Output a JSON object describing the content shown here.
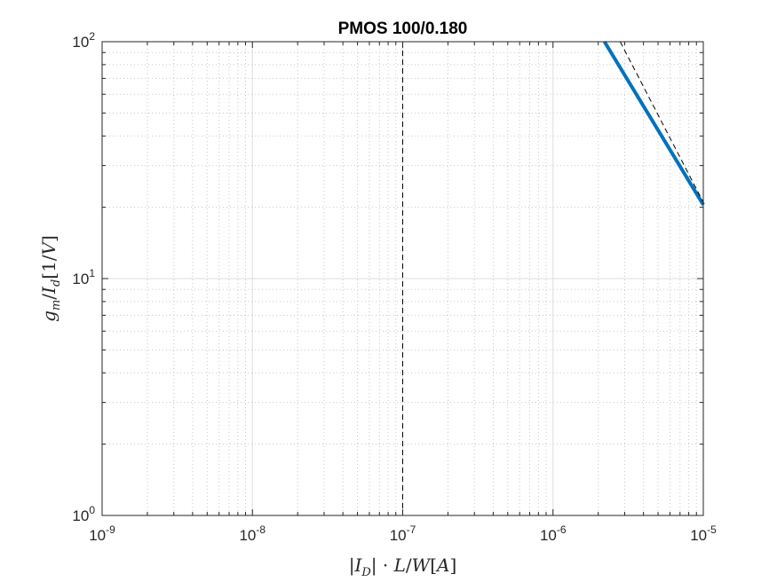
{
  "chart_data": {
    "type": "line",
    "title": "PMOS 100/0.180",
    "xlabel": "|I_D|·L/W [A]",
    "ylabel": "g_m/I_d [1/V]",
    "xscale": "log",
    "yscale": "log",
    "xlim": [
      1e-09,
      1e-05
    ],
    "ylim": [
      1,
      100
    ],
    "grid": true,
    "minor_grid": true,
    "x_ticks": [
      {
        "base": "10",
        "exp": "-9",
        "value": 1e-09
      },
      {
        "base": "10",
        "exp": "-8",
        "value": 1e-08
      },
      {
        "base": "10",
        "exp": "-7",
        "value": 1e-07
      },
      {
        "base": "10",
        "exp": "-6",
        "value": 1e-06
      },
      {
        "base": "10",
        "exp": "-5",
        "value": 1e-05
      }
    ],
    "y_ticks": [
      {
        "base": "10",
        "exp": "0",
        "value": 1
      },
      {
        "base": "10",
        "exp": "1",
        "value": 10
      },
      {
        "base": "10",
        "exp": "2",
        "value": 100
      }
    ],
    "series": [
      {
        "style": "solid",
        "color": "#0072BD",
        "x": [
          2.2e-06,
          1e-05
        ],
        "y": [
          100,
          20.5
        ]
      },
      {
        "style": "dashed",
        "color": "#000000",
        "x": [
          2.8e-06,
          1e-05
        ],
        "y": [
          100,
          21
        ]
      }
    ],
    "vertical_lines": [
      {
        "x": 1e-07,
        "style": "dashed",
        "color": "#000000"
      }
    ]
  }
}
